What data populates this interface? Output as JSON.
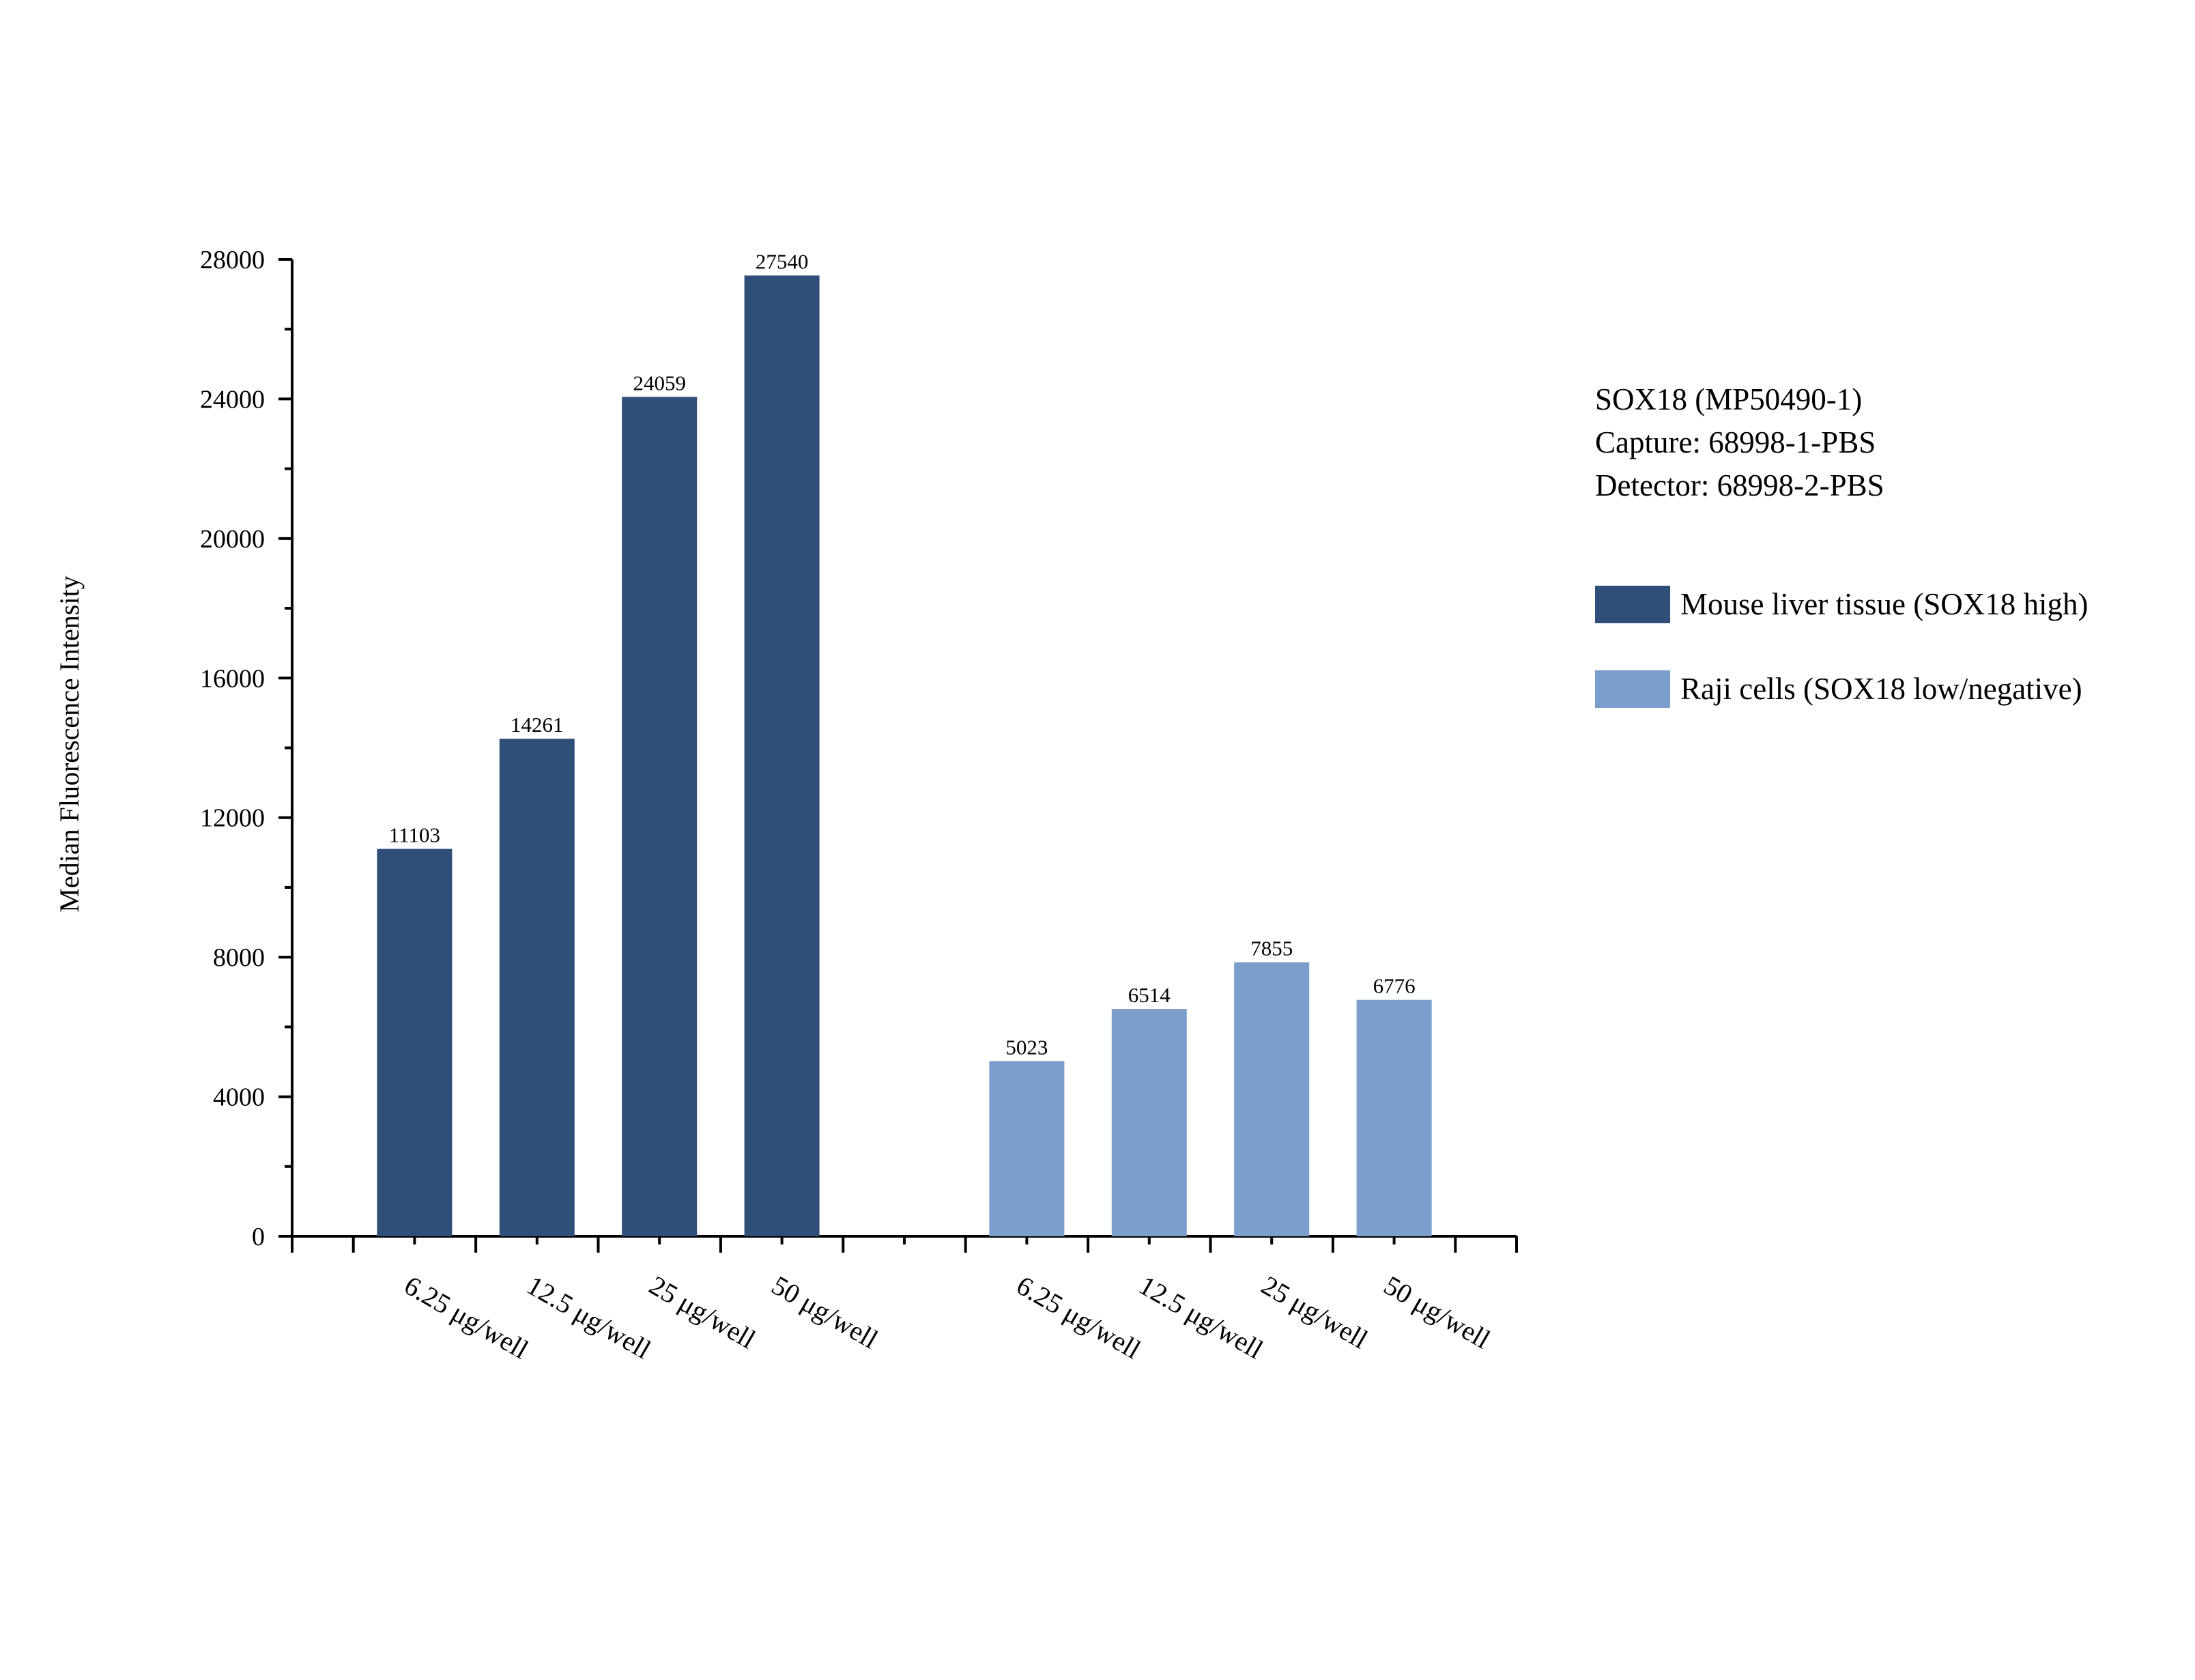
{
  "chart_data": {
    "type": "bar",
    "ylabel": "Median Fluorescence Intensity",
    "xlabel": "",
    "ylim": [
      0,
      28000
    ],
    "yticks": [
      0,
      4000,
      8000,
      12000,
      16000,
      20000,
      24000,
      28000
    ],
    "grid": false,
    "legend_position": "right",
    "info_lines": [
      "SOX18 (MP50490-1)",
      "Capture: 68998-1-PBS",
      "Detector: 68998-2-PBS"
    ],
    "groups": [
      {
        "name": "Mouse liver tissue (SOX18 high)",
        "color": "#2f4f78",
        "categories": [
          "6.25 μg/well",
          "12.5 μg/well",
          "25 μg/well",
          "50 μg/well"
        ],
        "values": [
          11103,
          14261,
          24059,
          27540
        ]
      },
      {
        "name": "Raji cells (SOX18 low/negative)",
        "color": "#7b9ecd",
        "categories": [
          "6.25 μg/well",
          "12.5 μg/well",
          "25 μg/well",
          "50 μg/well"
        ],
        "values": [
          5023,
          6514,
          7855,
          6776
        ]
      }
    ]
  }
}
